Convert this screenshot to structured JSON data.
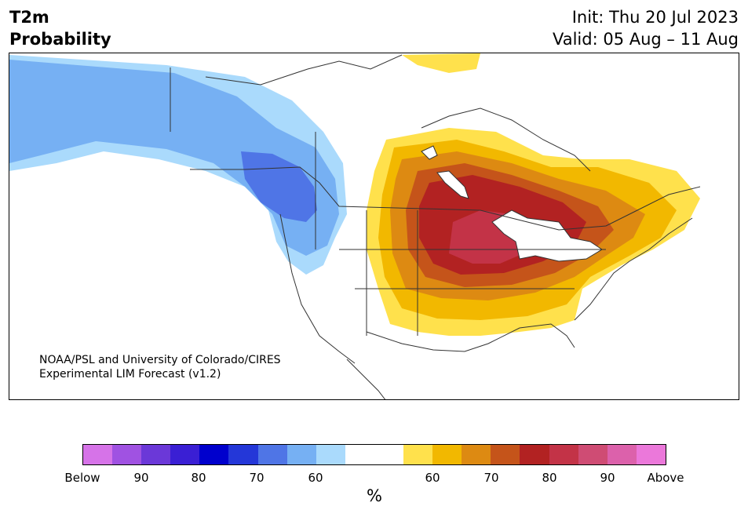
{
  "header": {
    "variable": "T2m",
    "product": "Probability",
    "init": "Init: Thu 20 Jul 2023",
    "valid": "Valid: 05 Aug – 11 Aug"
  },
  "map": {
    "credit_line1": "NOAA/PSL and University of Colorado/CIRES",
    "credit_line2": "Experimental LIM Forecast (v1.2)",
    "region": "North America (Alaska, Canada, Contiguous United States)",
    "regions_above_normal": [
      "Central United States",
      "Great Lakes",
      "Northeast United States",
      "Southeast United States",
      "Quebec"
    ],
    "regions_below_normal": [
      "Alaska",
      "British Columbia",
      "Yukon",
      "Pacific Northwest"
    ]
  },
  "colorbar": {
    "unit": "%",
    "segment_colors": [
      "#d673e8",
      "#a052e2",
      "#6b38d8",
      "#3a1fd4",
      "#0000cd",
      "#2437d8",
      "#4f75e6",
      "#76b0f3",
      "#aadafc",
      "#ffffff",
      "#ffffff",
      "#ffe14c",
      "#f2b800",
      "#dd8a12",
      "#c5541a",
      "#b22222",
      "#c33347",
      "#cf4c74",
      "#dc61ab",
      "#eb78da"
    ],
    "tick_labels": [
      "Below",
      "90",
      "80",
      "70",
      "60",
      "60",
      "70",
      "80",
      "90",
      "Above"
    ]
  }
}
